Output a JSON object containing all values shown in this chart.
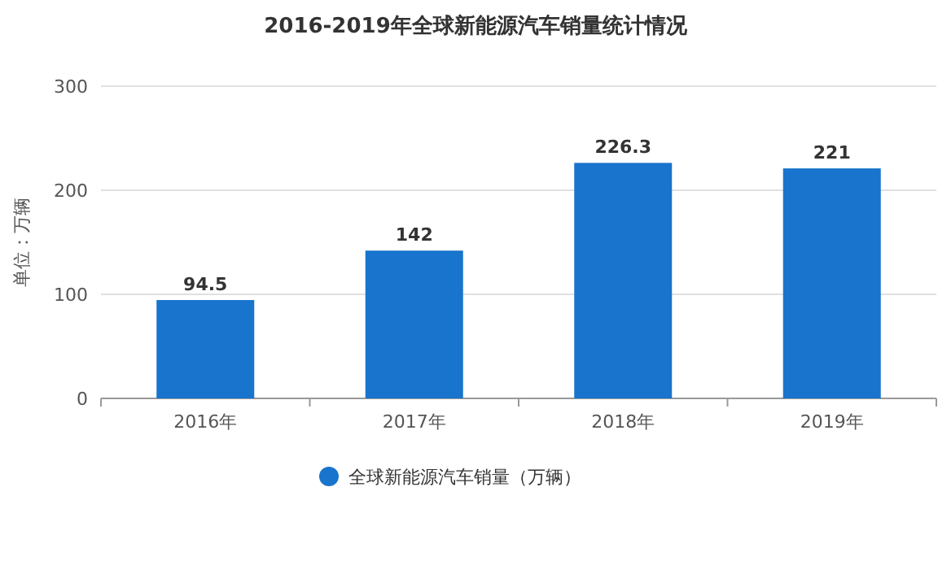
{
  "chart_data": {
    "type": "bar",
    "title": "2016-2019年全球新能源汽车销量统计情况",
    "ylabel": "单位：万辆",
    "categories": [
      "2016年",
      "2017年",
      "2018年",
      "2019年"
    ],
    "series": [
      {
        "name": "全球新能源汽车销量（万辆）",
        "color": "#1874cd",
        "values": [
          94.5,
          142,
          226.3,
          221
        ]
      }
    ],
    "ylim": [
      0,
      300
    ],
    "yticks": [
      0,
      100,
      200,
      300
    ],
    "grid": "y",
    "data_labels": true,
    "legend": "bottom",
    "marker": "circle"
  }
}
